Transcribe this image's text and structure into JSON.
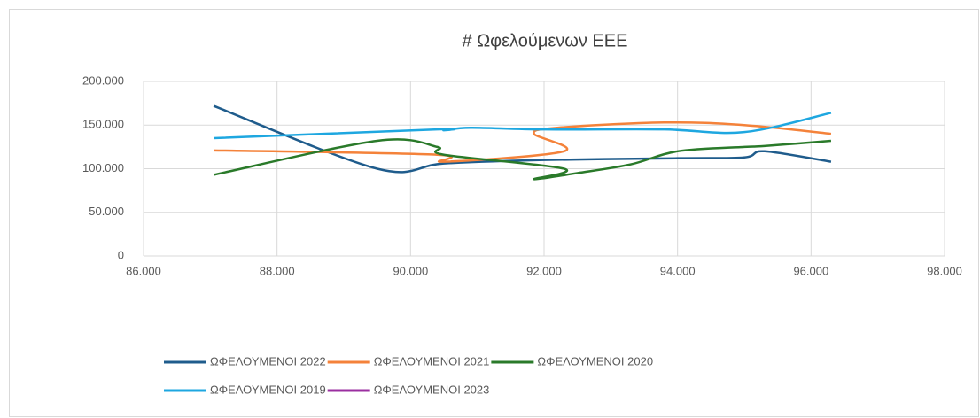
{
  "chart_data": {
    "type": "scatter",
    "title": "# Ωφελούμενων ΕΕΕ",
    "xlim": [
      86000,
      98000
    ],
    "xticks": [
      {
        "value": 86000,
        "label": "86.000"
      },
      {
        "value": 88000,
        "label": "88.000"
      },
      {
        "value": 90000,
        "label": "90.000"
      },
      {
        "value": 92000,
        "label": "92.000"
      },
      {
        "value": 94000,
        "label": "94.000"
      },
      {
        "value": 96000,
        "label": "96.000"
      },
      {
        "value": 98000,
        "label": "98.000"
      }
    ],
    "ylim": [
      0,
      200000
    ],
    "yticks": [
      0,
      {
        "value": 50000,
        "label": "50.000"
      },
      {
        "value": 100000,
        "label": "100.000"
      },
      {
        "value": 150000,
        "label": "150.000"
      },
      {
        "value": 200000,
        "label": "200.000"
      }
    ],
    "grid": true,
    "smooth": true,
    "legend": "bottom",
    "series": [
      {
        "name": "ΩΦΕΛΟΥΜΕΝΟΙ 2022",
        "color": "#1f5c8c",
        "x": [
          87050,
          89500,
          90500,
          92000,
          94000,
          95000,
          95300,
          96300
        ],
        "values": [
          172000,
          100000,
          106000,
          110000,
          112000,
          113000,
          120000,
          108000
        ]
      },
      {
        "name": "ΩΦΕΛΟΥΜΕΝΟΙ 2021",
        "color": "#f4823a",
        "x": [
          87050,
          90400,
          90500,
          92300,
          91850,
          92200,
          93800,
          95000,
          96300
        ],
        "values": [
          121000,
          116000,
          108000,
          120000,
          140000,
          147000,
          153000,
          150000,
          140000
        ]
      },
      {
        "name": "ΩΦΕΛΟΥΜΕΝΟΙ 2020",
        "color": "#2a7a2a",
        "x": [
          87050,
          89500,
          90400,
          90500,
          92300,
          91850,
          92500,
          93300,
          94000,
          95000,
          95300,
          96300
        ],
        "values": [
          93000,
          132000,
          125000,
          116000,
          100000,
          88000,
          95000,
          105000,
          120000,
          125000,
          126000,
          132000
        ]
      },
      {
        "name": "ΩΦΕΛΟΥΜΕΝΟΙ 2019",
        "color": "#1ea7e0",
        "x": [
          87050,
          90400,
          90500,
          90900,
          92000,
          93800,
          95000,
          96300
        ],
        "values": [
          135000,
          145000,
          144000,
          147000,
          145000,
          145000,
          142000,
          164000
        ]
      },
      {
        "name": "ΩΦΕΛΟΥΜΕΝΟΙ 2023",
        "color": "#9b2fa0",
        "x": [],
        "values": []
      }
    ]
  }
}
